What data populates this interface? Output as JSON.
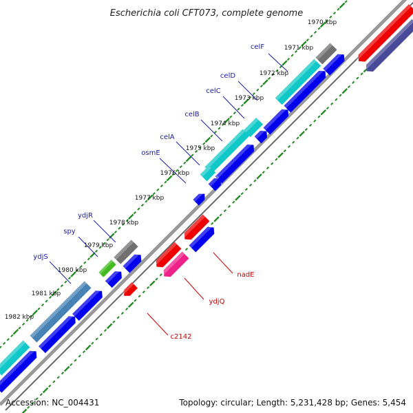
{
  "title": "Escherichia coli CFT073, complete genome",
  "footer": {
    "accession": "Accession: NC_004431",
    "summary": "Topology: circular; Length: 5,231,428 bp; Genes: 5,454"
  },
  "colors": {
    "forward_label": "#1a1aa8",
    "reverse_label": "#cc0000",
    "blue_feature": "#0000ee",
    "red_feature": "#ee0000",
    "cyan_feature": "#10c8c8",
    "gray_feature": "#707070",
    "steelblue_feature": "#4682b4",
    "green_feature": "#44bb22",
    "magenta_feature": "#ee2288",
    "slate_feature": "#4a4a9a",
    "backbone": "#888888",
    "ticks": "#228822"
  },
  "kbp_labels": [
    "1970 kbp",
    "1971 kbp",
    "1972 kbp",
    "1973 kbp",
    "1974 kbp",
    "1975 kbp",
    "1976 kbp",
    "1977 kbp",
    "1978 kbp",
    "1979 kbp",
    "1980 kbp",
    "1981 kbp",
    "1982 kbp"
  ],
  "gene_labels": [
    {
      "text": "celF",
      "strand": "forward"
    },
    {
      "text": "celD",
      "strand": "forward"
    },
    {
      "text": "celC",
      "strand": "forward"
    },
    {
      "text": "celB",
      "strand": "forward"
    },
    {
      "text": "celA",
      "strand": "forward"
    },
    {
      "text": "osmE",
      "strand": "forward"
    },
    {
      "text": "ydjR",
      "strand": "forward"
    },
    {
      "text": "spy",
      "strand": "forward"
    },
    {
      "text": "ydjS",
      "strand": "forward"
    },
    {
      "text": "nadE",
      "strand": "reverse"
    },
    {
      "text": "ydjQ",
      "strand": "reverse"
    },
    {
      "text": "c2142",
      "strand": "reverse"
    }
  ]
}
